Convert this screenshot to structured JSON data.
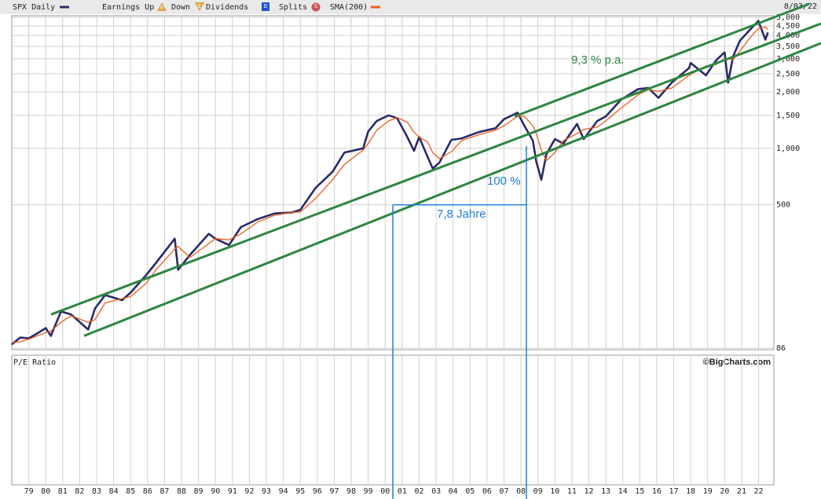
{
  "chart_data": {
    "type": "line",
    "date_label": "8/03/22",
    "lower_panel_title": "P/E Ratio",
    "credit": "©BigCharts.com",
    "log_y": true,
    "grid": true,
    "legend_markers": [
      {
        "label": "Earnings Up",
        "symbol": "E",
        "color": "#d9a441"
      },
      {
        "label": "Down",
        "symbol": "E",
        "color": "#d9a441"
      },
      {
        "label": "Dividends",
        "symbol": "D",
        "color": "#2255cc"
      },
      {
        "label": "Splits",
        "symbol": "S",
        "color": "#cc5555"
      }
    ],
    "annotations": [
      "9,3 % p.a.",
      "100 %",
      "7,8 Jahre"
    ],
    "x": [
      1978.0,
      1978.5,
      1979.0,
      1979.5,
      1980.0,
      1980.3,
      1980.9,
      1981.5,
      1982.5,
      1982.9,
      1983.5,
      1984.5,
      1985.0,
      1985.9,
      1986.5,
      1987.6,
      1987.8,
      1988.5,
      1989.6,
      1990.0,
      1990.8,
      1991.5,
      1992.5,
      1993.5,
      1994.5,
      1995.0,
      1995.9,
      1996.9,
      1997.6,
      1998.7,
      1999.0,
      1999.5,
      2000.2,
      2000.7,
      2001.3,
      2001.7,
      2002.0,
      2002.5,
      2002.8,
      2003.2,
      2003.9,
      2004.5,
      2005.5,
      2006.5,
      2007.0,
      2007.8,
      2008.2,
      2008.7,
      2008.9,
      2009.2,
      2009.5,
      2010.0,
      2010.5,
      2011.3,
      2011.7,
      2012.5,
      2013.0,
      2013.9,
      2014.9,
      2015.5,
      2016.1,
      2016.9,
      2017.9,
      2018.0,
      2018.9,
      2019.5,
      2020.0,
      2020.2,
      2020.5,
      2020.9,
      2021.5,
      2021.99,
      2022.4,
      2022.55
    ],
    "series": [
      {
        "name": "SPX Daily",
        "color": "#2b2b66",
        "values": [
          90,
          98,
          97,
          103,
          110,
          100,
          135,
          130,
          108,
          140,
          165,
          155,
          170,
          210,
          245,
          330,
          225,
          270,
          350,
          330,
          305,
          380,
          420,
          450,
          455,
          470,
          615,
          750,
          950,
          1000,
          1230,
          1400,
          1500,
          1450,
          1150,
          970,
          1150,
          900,
          780,
          840,
          1110,
          1130,
          1220,
          1280,
          1430,
          1550,
          1320,
          1100,
          850,
          680,
          930,
          1120,
          1060,
          1350,
          1120,
          1400,
          1480,
          1820,
          2070,
          2100,
          1860,
          2250,
          2680,
          2850,
          2450,
          2950,
          3250,
          2240,
          3100,
          3750,
          4300,
          4780,
          3800,
          4150
        ]
      },
      {
        "name": "SMA(200)",
        "color": "#e8601c",
        "values": [
          92,
          93,
          96,
          100,
          104,
          106,
          118,
          128,
          118,
          122,
          150,
          158,
          162,
          190,
          225,
          290,
          300,
          262,
          310,
          330,
          325,
          350,
          405,
          440,
          455,
          458,
          540,
          680,
          820,
          980,
          1060,
          1250,
          1400,
          1460,
          1380,
          1220,
          1150,
          1080,
          950,
          880,
          960,
          1100,
          1180,
          1250,
          1320,
          1480,
          1480,
          1320,
          1200,
          980,
          860,
          950,
          1100,
          1200,
          1260,
          1300,
          1400,
          1640,
          1930,
          2060,
          2010,
          2100,
          2450,
          2480,
          2750,
          2800,
          3000,
          3000,
          2980,
          3300,
          3900,
          4350,
          4450,
          4300
        ]
      }
    ],
    "trend_lines": [
      {
        "color": "#2e8540",
        "x": [
          1980.31,
          2025.68
        ],
        "values": [
          130,
          4630
        ]
      },
      {
        "color": "#2e8540",
        "x": [
          1982.26,
          2025.68
        ],
        "values": [
          100,
          3640
        ]
      },
      {
        "color": "#2e8540",
        "x": [
          2007.63,
          2024.98
        ],
        "values": [
          1480,
          5890
        ]
      }
    ],
    "measure": {
      "color": "#1e7fd8",
      "x": [
        2000.45,
        2008.32
      ],
      "values": [
        500,
        1030
      ]
    },
    "xlim": [
      1978.0,
      2022.9
    ],
    "ylim": [
      86,
      5000
    ],
    "xticks": [
      {
        "value": 1979,
        "label": "79"
      },
      {
        "value": 1980,
        "label": "80"
      },
      {
        "value": 1981,
        "label": "81"
      },
      {
        "value": 1982,
        "label": "82"
      },
      {
        "value": 1983,
        "label": "83"
      },
      {
        "value": 1984,
        "label": "84"
      },
      {
        "value": 1985,
        "label": "85"
      },
      {
        "value": 1986,
        "label": "86"
      },
      {
        "value": 1987,
        "label": "87"
      },
      {
        "value": 1988,
        "label": "88"
      },
      {
        "value": 1989,
        "label": "89"
      },
      {
        "value": 1990,
        "label": "90"
      },
      {
        "value": 1991,
        "label": "91"
      },
      {
        "value": 1992,
        "label": "92"
      },
      {
        "value": 1993,
        "label": "93"
      },
      {
        "value": 1994,
        "label": "94"
      },
      {
        "value": 1995,
        "label": "95"
      },
      {
        "value": 1996,
        "label": "96"
      },
      {
        "value": 1997,
        "label": "97"
      },
      {
        "value": 1998,
        "label": "98"
      },
      {
        "value": 1999,
        "label": "99"
      },
      {
        "value": 2000,
        "label": "00"
      },
      {
        "value": 2001,
        "label": "01"
      },
      {
        "value": 2002,
        "label": "02"
      },
      {
        "value": 2003,
        "label": "03"
      },
      {
        "value": 2004,
        "label": "04"
      },
      {
        "value": 2005,
        "label": "05"
      },
      {
        "value": 2006,
        "label": "06"
      },
      {
        "value": 2007,
        "label": "07"
      },
      {
        "value": 2008,
        "label": "08"
      },
      {
        "value": 2009,
        "label": "09"
      },
      {
        "value": 2010,
        "label": "10"
      },
      {
        "value": 2011,
        "label": "11"
      },
      {
        "value": 2012,
        "label": "12"
      },
      {
        "value": 2013,
        "label": "13"
      },
      {
        "value": 2014,
        "label": "14"
      },
      {
        "value": 2015,
        "label": "15"
      },
      {
        "value": 2016,
        "label": "16"
      },
      {
        "value": 2017,
        "label": "17"
      },
      {
        "value": 2018,
        "label": "18"
      },
      {
        "value": 2019,
        "label": "19"
      },
      {
        "value": 2020,
        "label": "20"
      },
      {
        "value": 2021,
        "label": "21"
      },
      {
        "value": 2022,
        "label": "22"
      }
    ],
    "yticks": [
      86,
      500,
      {
        "value": 1000,
        "label": "1,000"
      },
      {
        "value": 1500,
        "label": "1,500"
      },
      {
        "value": 2000,
        "label": "2,000"
      },
      {
        "value": 2500,
        "label": "2,500"
      },
      {
        "value": 3000,
        "label": "3,000"
      },
      {
        "value": 3500,
        "label": "3,500"
      },
      {
        "value": 4000,
        "label": "4,000"
      },
      {
        "value": 4500,
        "label": "4,500"
      },
      {
        "value": 5000,
        "label": "5,000"
      }
    ]
  }
}
